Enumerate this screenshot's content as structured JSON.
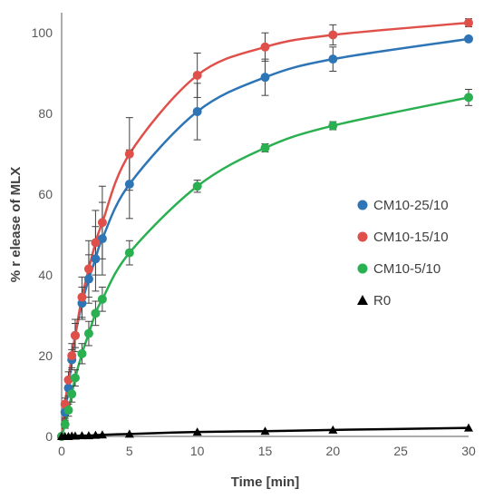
{
  "chart_data": {
    "type": "line",
    "title": "",
    "xlabel": "Time [min]",
    "ylabel": "% r elease of MLX",
    "xlim": [
      0,
      30
    ],
    "ylim": [
      0,
      105
    ],
    "x_ticks": [
      0,
      5,
      10,
      15,
      20,
      25,
      30
    ],
    "y_ticks": [
      0,
      20,
      40,
      60,
      80,
      100
    ],
    "grid": false,
    "legend_position": "right",
    "series": [
      {
        "name": "CM10-25/10",
        "color": "#2E75B6",
        "marker": "circle",
        "x": [
          0,
          0.25,
          0.5,
          0.75,
          1,
          1.5,
          2,
          2.5,
          3,
          5,
          10,
          15,
          20,
          30
        ],
        "y": [
          0,
          6,
          12,
          19,
          25,
          33,
          39,
          44,
          49,
          62.5,
          80.5,
          89,
          93.5,
          98.5
        ],
        "err": [
          0,
          1.5,
          2,
          2.5,
          3,
          4,
          6,
          8,
          9,
          8.5,
          7,
          4.5,
          3,
          0
        ]
      },
      {
        "name": "CM10-15/10",
        "color": "#E0504B",
        "marker": "circle",
        "x": [
          0,
          0.25,
          0.5,
          0.75,
          1,
          1.5,
          2,
          2.5,
          3,
          5,
          10,
          15,
          20,
          30
        ],
        "y": [
          0,
          8,
          14,
          20,
          25,
          34.5,
          41.5,
          48,
          53,
          70,
          89.5,
          96.5,
          99.5,
          102.5
        ],
        "err": [
          0,
          1.5,
          2,
          3,
          4,
          5,
          7,
          8,
          9,
          9,
          5.5,
          3.5,
          2.5,
          1
        ]
      },
      {
        "name": "CM10-5/10",
        "color": "#2AB050",
        "marker": "circle",
        "x": [
          0,
          0.25,
          0.5,
          0.75,
          1,
          1.5,
          2,
          2.5,
          3,
          5,
          10,
          15,
          20,
          30
        ],
        "y": [
          0,
          3,
          6.5,
          10.5,
          14.5,
          20.5,
          25.5,
          30.5,
          34,
          45.5,
          62,
          71.5,
          77,
          84
        ],
        "err": [
          0,
          1,
          1.5,
          2,
          2,
          2.5,
          3,
          3,
          3,
          3,
          1.5,
          1,
          1,
          2
        ]
      },
      {
        "name": "R0",
        "color": "#000000",
        "marker": "triangle",
        "x": [
          0,
          0.25,
          0.5,
          0.75,
          1,
          1.5,
          2,
          2.5,
          3,
          5,
          10,
          15,
          20,
          30
        ],
        "y": [
          0,
          0,
          0,
          0.1,
          0.1,
          0.2,
          0.2,
          0.3,
          0.4,
          0.6,
          1.1,
          1.3,
          1.6,
          2.1
        ],
        "err": [
          0,
          0,
          0,
          0,
          0,
          0,
          0,
          0,
          0,
          0,
          0,
          0,
          0,
          0
        ]
      }
    ]
  }
}
